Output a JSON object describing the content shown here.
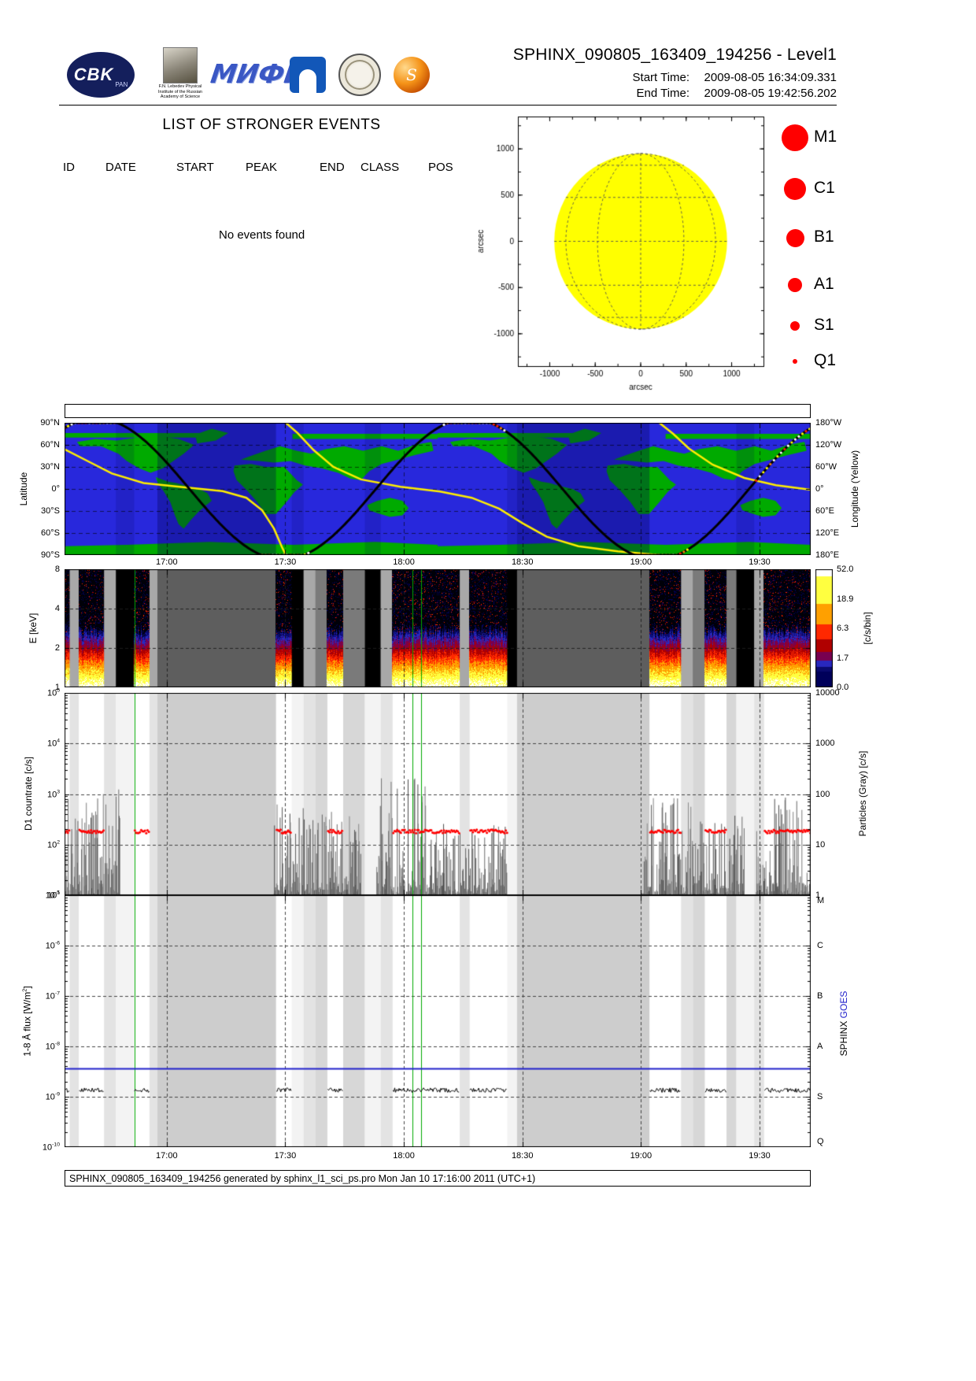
{
  "header": {
    "title": "SPHINX_090805_163409_194256 - Level1",
    "start_label": "Start Time:",
    "start_value": "2009-08-05   16:34:09.331",
    "end_label": "End Time:",
    "end_value": "2009-08-05   19:42:56.202"
  },
  "logos": {
    "cbk_text": "CBK",
    "cbk_sub": "PAN",
    "lebedev_caption": "F.N. Lebedev Physical Institute of the Russian Academy of Science",
    "mephi_text": "МИФИ",
    "sphinx_text": "S"
  },
  "events": {
    "title": "LIST OF STRONGER EVENTS",
    "columns": [
      "ID",
      "DATE",
      "START",
      "PEAK",
      "END",
      "CLASS",
      "POS"
    ],
    "empty": "No events found"
  },
  "footer": {
    "text": "SPHINX_090805_163409_194256 generated by sphinx_l1_sci_ps.pro Mon Jan 10 17:16:00 2011 (UTC+1)"
  },
  "timeline": {
    "duration_min": 188.8,
    "ticks": [
      {
        "t": 25.85,
        "label": "17:00"
      },
      {
        "t": 55.85,
        "label": "17:30"
      },
      {
        "t": 85.85,
        "label": "18:00"
      },
      {
        "t": 115.85,
        "label": "18:30"
      },
      {
        "t": 145.85,
        "label": "19:00"
      },
      {
        "t": 175.85,
        "label": "19:30"
      }
    ]
  },
  "green_lines": [
    17.8,
    88.0,
    90.2
  ],
  "green_color": "#00aa00",
  "bands": [
    {
      "t0": 0,
      "t1": 1.3,
      "type": "sun"
    },
    {
      "t0": 1.3,
      "t1": 3.6,
      "type": "light"
    },
    {
      "t0": 3.6,
      "t1": 10,
      "type": "sun"
    },
    {
      "t0": 10,
      "t1": 13,
      "type": "light"
    },
    {
      "t0": 13,
      "t1": 17.6,
      "type": "black"
    },
    {
      "t0": 17.6,
      "t1": 21.5,
      "type": "sun"
    },
    {
      "t0": 21.5,
      "t1": 23.5,
      "type": "light"
    },
    {
      "t0": 23.5,
      "t1": 53.5,
      "type": "dark"
    },
    {
      "t0": 53.5,
      "t1": 57.5,
      "type": "sun"
    },
    {
      "t0": 57.5,
      "t1": 60.5,
      "type": "black"
    },
    {
      "t0": 60.5,
      "t1": 63.5,
      "type": "light"
    },
    {
      "t0": 63.5,
      "t1": 66.5,
      "type": "mid"
    },
    {
      "t0": 66.5,
      "t1": 70.5,
      "type": "sun"
    },
    {
      "t0": 70.5,
      "t1": 76,
      "type": "mid"
    },
    {
      "t0": 76,
      "t1": 80,
      "type": "black"
    },
    {
      "t0": 80,
      "t1": 83,
      "type": "light"
    },
    {
      "t0": 83,
      "t1": 100,
      "type": "sun"
    },
    {
      "t0": 100,
      "t1": 102.5,
      "type": "light"
    },
    {
      "t0": 102.5,
      "t1": 112,
      "type": "sun"
    },
    {
      "t0": 112,
      "t1": 114.5,
      "type": "black"
    },
    {
      "t0": 114.5,
      "t1": 148,
      "type": "dark"
    },
    {
      "t0": 148,
      "t1": 156,
      "type": "sun"
    },
    {
      "t0": 156,
      "t1": 159,
      "type": "light"
    },
    {
      "t0": 159,
      "t1": 162,
      "type": "mid"
    },
    {
      "t0": 162,
      "t1": 167.5,
      "type": "sun"
    },
    {
      "t0": 167.5,
      "t1": 170,
      "type": "mid"
    },
    {
      "t0": 170,
      "t1": 174.5,
      "type": "black"
    },
    {
      "t0": 174.5,
      "t1": 177,
      "type": "light"
    },
    {
      "t0": 177,
      "t1": 188.8,
      "type": "sun"
    }
  ],
  "chart_data": [
    {
      "id": "sun_disk",
      "type": "scatter",
      "xlabel": "arcsec",
      "ylabel": "arcsec",
      "xticks": [
        -1000,
        -500,
        0,
        500,
        1000
      ],
      "yticks": [
        -1000,
        -500,
        0,
        500,
        1000
      ],
      "xlim": [
        -1350,
        1350
      ],
      "ylim": [
        -1350,
        1350
      ],
      "disk_radius": 950,
      "disk_color": "#ffff00",
      "flare_points": [],
      "legend": {
        "color": "#ff0000",
        "items": [
          {
            "label": "M1",
            "r": 17
          },
          {
            "label": "C1",
            "r": 14
          },
          {
            "label": "B1",
            "r": 11.5
          },
          {
            "label": "A1",
            "r": 9
          },
          {
            "label": "S1",
            "r": 6
          },
          {
            "label": "Q1",
            "r": 3
          }
        ]
      }
    },
    {
      "id": "ground_track",
      "type": "line",
      "ylabel_left": "Latitude",
      "ylabel_right": "Longitude (Yellow)",
      "yticks_left": [
        "90°N",
        "60°N",
        "30°N",
        "0°",
        "30°S",
        "60°S",
        "90°S"
      ],
      "yticks_right": [
        "180°W",
        "120°W",
        "60°W",
        "0°",
        "60°E",
        "120°E",
        "180°E"
      ],
      "ocean_color": "#2828dc",
      "land_color": "#00aa00",
      "track_color": "#000000",
      "lon_color": "#ffee00",
      "orbit_period_min": 94.4,
      "lat_amplitude": 96,
      "lat_peak_at_min": 8,
      "map_repeats": 2,
      "hot_colors": [
        "#ff2000",
        "#ff8000",
        "#ffff00",
        "#ffffff"
      ],
      "hot_segments": [
        [
          0,
          13
        ],
        [
          50,
          62
        ],
        [
          96,
          112
        ],
        [
          145,
          158
        ],
        [
          175,
          188.8
        ]
      ],
      "lon_curve": [
        [
          [
            0,
            -108
          ],
          [
            6,
            -75
          ],
          [
            12,
            -42
          ],
          [
            20,
            -16
          ],
          [
            30,
            -5
          ],
          [
            40,
            6
          ],
          [
            46,
            24
          ],
          [
            50,
            58
          ],
          [
            53,
            108
          ],
          [
            55,
            158
          ],
          [
            56,
            180
          ]
        ],
        [
          [
            56,
            -180
          ],
          [
            59,
            -152
          ],
          [
            63,
            -106
          ],
          [
            68,
            -60
          ],
          [
            75,
            -26
          ],
          [
            85,
            -6
          ],
          [
            95,
            7
          ],
          [
            103,
            24
          ],
          [
            110,
            54
          ],
          [
            116,
            94
          ],
          [
            122,
            130
          ],
          [
            130,
            156
          ],
          [
            140,
            170
          ],
          [
            150.5,
            180
          ]
        ],
        [
          [
            150.5,
            -180
          ],
          [
            154,
            -150
          ],
          [
            158,
            -110
          ],
          [
            164,
            -66
          ],
          [
            172,
            -30
          ],
          [
            180,
            -10
          ],
          [
            188.8,
            2
          ]
        ]
      ],
      "continents": [
        [
          [
            -168,
            64
          ],
          [
            -150,
            68
          ],
          [
            -130,
            66
          ],
          [
            -110,
            70
          ],
          [
            -90,
            72
          ],
          [
            -70,
            68
          ],
          [
            -55,
            60
          ],
          [
            -65,
            48
          ],
          [
            -75,
            38
          ],
          [
            -85,
            28
          ],
          [
            -97,
            22
          ],
          [
            -108,
            28
          ],
          [
            -120,
            38
          ],
          [
            -128,
            48
          ],
          [
            -145,
            58
          ],
          [
            -165,
            58
          ]
        ],
        [
          [
            -92,
            16
          ],
          [
            -80,
            10
          ],
          [
            -72,
            8
          ],
          [
            -62,
            4
          ],
          [
            -50,
            0
          ],
          [
            -42,
            -6
          ],
          [
            -38,
            -16
          ],
          [
            -50,
            -30
          ],
          [
            -58,
            -42
          ],
          [
            -65,
            -54
          ],
          [
            -70,
            -48
          ],
          [
            -74,
            -34
          ],
          [
            -78,
            -18
          ],
          [
            -84,
            -4
          ],
          [
            -90,
            8
          ]
        ],
        [
          [
            -52,
            62
          ],
          [
            -34,
            66
          ],
          [
            -22,
            76
          ],
          [
            -38,
            82
          ],
          [
            -54,
            74
          ]
        ],
        [
          [
            -16,
            32
          ],
          [
            0,
            34
          ],
          [
            14,
            30
          ],
          [
            32,
            30
          ],
          [
            44,
            12
          ],
          [
            50,
            6
          ],
          [
            42,
            -4
          ],
          [
            34,
            -18
          ],
          [
            24,
            -34
          ],
          [
            14,
            -34
          ],
          [
            6,
            -18
          ],
          [
            -4,
            -2
          ],
          [
            -14,
            12
          ],
          [
            -17,
            24
          ]
        ],
        [
          [
            -10,
            40
          ],
          [
            2,
            46
          ],
          [
            14,
            52
          ],
          [
            28,
            58
          ],
          [
            44,
            52
          ],
          [
            58,
            48
          ],
          [
            72,
            54
          ],
          [
            90,
            58
          ],
          [
            108,
            52
          ],
          [
            126,
            58
          ],
          [
            142,
            52
          ],
          [
            158,
            60
          ],
          [
            174,
            64
          ],
          [
            176,
            52
          ],
          [
            158,
            46
          ],
          [
            142,
            40
          ],
          [
            126,
            34
          ],
          [
            114,
            24
          ],
          [
            106,
            12
          ],
          [
            96,
            14
          ],
          [
            84,
            22
          ],
          [
            68,
            28
          ],
          [
            52,
            32
          ],
          [
            38,
            38
          ],
          [
            22,
            36
          ],
          [
            8,
            38
          ]
        ],
        [
          [
            112,
            -22
          ],
          [
            122,
            -16
          ],
          [
            134,
            -12
          ],
          [
            146,
            -16
          ],
          [
            152,
            -26
          ],
          [
            146,
            -36
          ],
          [
            134,
            -38
          ],
          [
            122,
            -33
          ],
          [
            114,
            -29
          ]
        ],
        [
          [
            -180,
            -90
          ],
          [
            180,
            -90
          ],
          [
            180,
            -76
          ],
          [
            120,
            -72
          ],
          [
            40,
            -76
          ],
          [
            -40,
            -72
          ],
          [
            -120,
            -76
          ],
          [
            -180,
            -78
          ]
        ],
        [
          [
            -180,
            70
          ],
          [
            -30,
            70
          ],
          [
            -30,
            76
          ],
          [
            -180,
            76
          ]
        ],
        [
          [
            40,
            68
          ],
          [
            180,
            68
          ],
          [
            180,
            75
          ],
          [
            40,
            75
          ]
        ]
      ]
    },
    {
      "id": "spectrogram",
      "type": "heatmap",
      "ylabel": "E [keV]",
      "yticks": [
        1,
        2,
        4,
        8
      ],
      "e_min": 1,
      "e_max": 8,
      "colorbar": {
        "label": "[c/s/bin]",
        "tick_labels": [
          "0.0",
          "1.7",
          "6.3",
          "18.9",
          "52.0"
        ],
        "max_value": 52.0
      }
    },
    {
      "id": "countrate",
      "type": "line",
      "ylabel_left": "D1 countrate [c/s]",
      "ylabel_right": "Particles (Gray) [c/s]",
      "yticks_left": [
        "10^1",
        "10^2",
        "10^3",
        "10^4",
        "10^5"
      ],
      "yticks_right": [
        "1",
        "10",
        "100",
        "1000",
        "10000"
      ],
      "red_level_log": 2.26,
      "red_color": "#ff0000",
      "gray_color": "#6e6e6e",
      "spike_groups": [
        {
          "t0": 0,
          "t1": 5,
          "peak": 3.0
        },
        {
          "t0": 5,
          "t1": 14,
          "peak": 3.1
        },
        {
          "t0": 53,
          "t1": 60,
          "peak": 2.95
        },
        {
          "t0": 60,
          "t1": 75,
          "peak": 2.75
        },
        {
          "t0": 79,
          "t1": 92,
          "peak": 3.35
        },
        {
          "t0": 92,
          "t1": 112,
          "peak": 2.45
        },
        {
          "t0": 146,
          "t1": 160,
          "peak": 3.0
        },
        {
          "t0": 160,
          "t1": 172,
          "peak": 2.6
        },
        {
          "t0": 175,
          "t1": 188.8,
          "peak": 3.0
        }
      ]
    },
    {
      "id": "flux",
      "type": "line",
      "ylabel_left": "1-8 Å flux [W/m^2]",
      "yticks_left": [
        "10^-10",
        "10^-9",
        "10^-8",
        "10^-7",
        "10^-6",
        "10^-5"
      ],
      "goes_classes": [
        "M",
        "C",
        "B",
        "A",
        "S",
        "Q"
      ],
      "right_label_black": "SPHINX",
      "right_label_blue": "GOES",
      "goes_line_flux": 3.6e-09,
      "goes_color": "#2222cc",
      "sphinx_flux": 1.35e-09,
      "sphinx_color": "#000000"
    }
  ]
}
